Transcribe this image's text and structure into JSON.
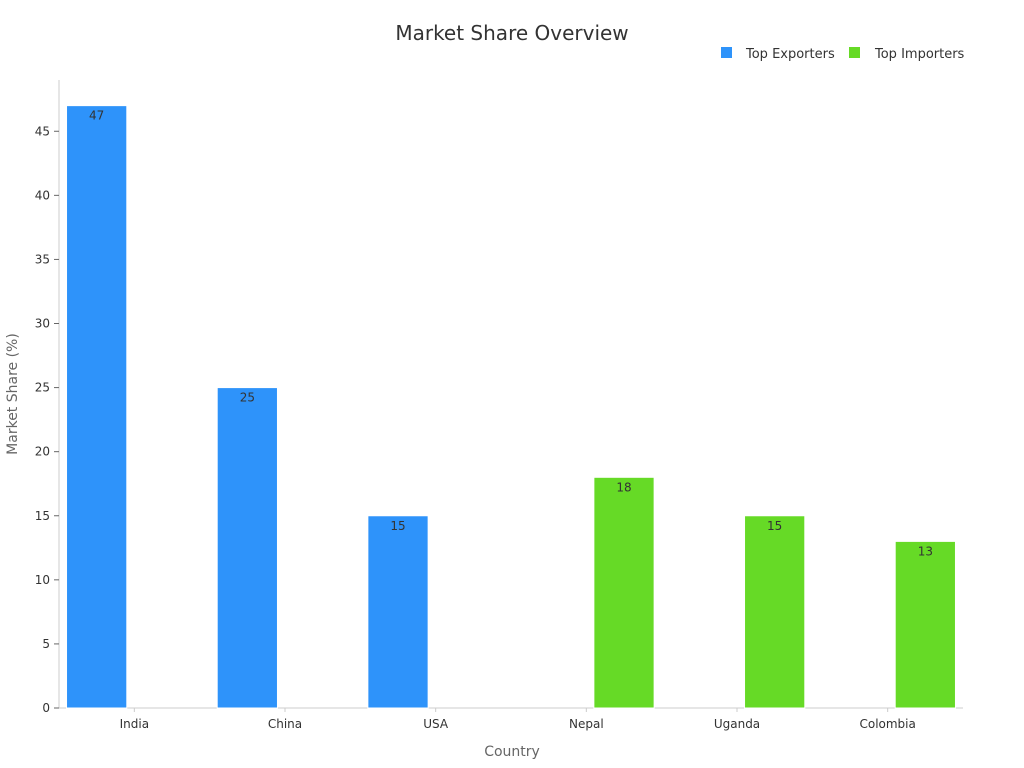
{
  "chart_data": {
    "type": "bar",
    "title": "Market Share Overview",
    "xlabel": "Country",
    "ylabel": "Market Share (%)",
    "categories": [
      "India",
      "China",
      "USA",
      "Nepal",
      "Uganda",
      "Colombia"
    ],
    "series": [
      {
        "name": "Top Exporters",
        "color": "#2e93fa",
        "values": [
          47,
          25,
          15,
          null,
          null,
          null
        ]
      },
      {
        "name": "Top Importers",
        "color": "#66da26",
        "values": [
          null,
          null,
          null,
          18,
          15,
          13
        ]
      }
    ],
    "ylim": [
      0,
      49
    ],
    "yticks": [
      0,
      5,
      10,
      15,
      20,
      25,
      30,
      35,
      40,
      45
    ],
    "legend_position": "top-right",
    "grid": false,
    "data_labels": true
  }
}
